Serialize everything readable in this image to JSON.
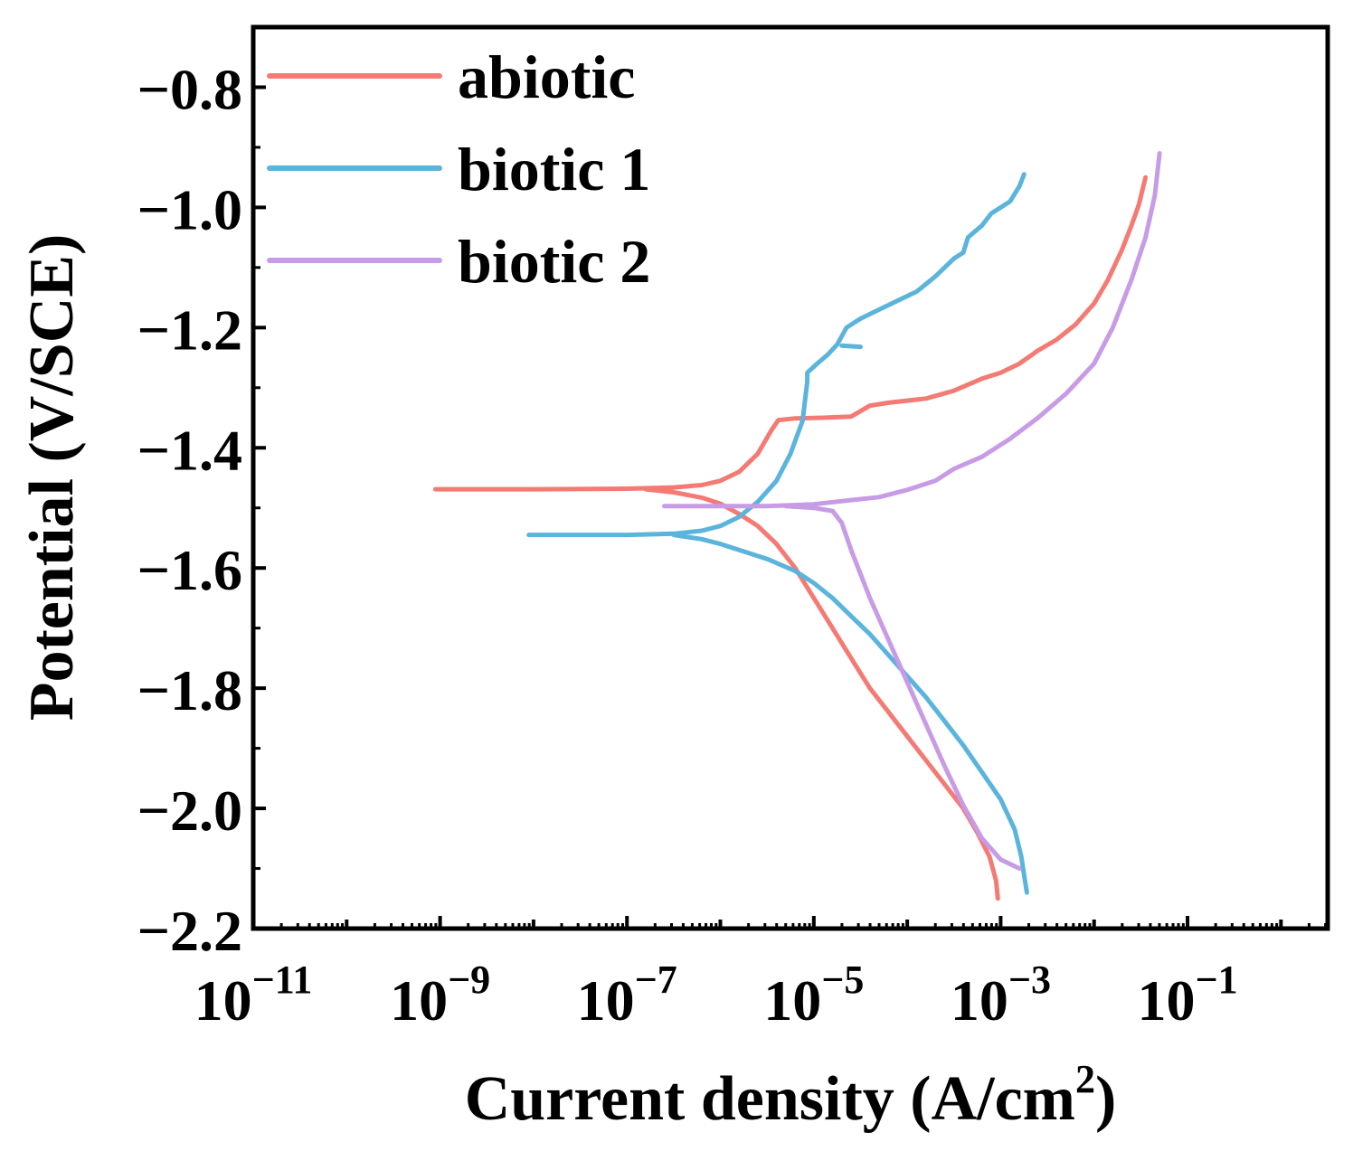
{
  "chart_data": {
    "type": "line",
    "xscale": "log",
    "xlabel": "Current density (A/cm",
    "xlabel_sup": "2",
    "xlabel_end": ")",
    "ylabel": "Potential (V/SCE)",
    "xlim_exp": [
      -11,
      0.5
    ],
    "ylim": [
      -2.2,
      -0.7
    ],
    "x_major_exponents": [
      -11,
      -9,
      -7,
      -5,
      -3,
      -1
    ],
    "x_tick_base": "10",
    "x_tick_exps": [
      "−11",
      "−9",
      "−7",
      "−5",
      "−3",
      "−1"
    ],
    "y_ticks": [
      -0.8,
      -1.0,
      -1.2,
      -1.4,
      -1.6,
      -1.8,
      -2.0,
      -2.2
    ],
    "y_tick_labels": [
      "−0.8",
      "−1.0",
      "−1.2",
      "−1.4",
      "−1.6",
      "−1.8",
      "−2.0",
      "−2.2"
    ],
    "legend_position": "top-left",
    "series": [
      {
        "name": "abiotic",
        "color": "#f47a74",
        "points": [
          [
            -9.05,
            -1.469
          ],
          [
            -8,
            -1.469
          ],
          [
            -7,
            -1.468
          ],
          [
            -6.5,
            -1.466
          ],
          [
            -6.2,
            -1.462
          ],
          [
            -6.0,
            -1.455
          ],
          [
            -5.8,
            -1.44
          ],
          [
            -5.6,
            -1.41
          ],
          [
            -5.45,
            -1.37
          ],
          [
            -5.38,
            -1.354
          ],
          [
            -5.2,
            -1.351
          ],
          [
            -4.9,
            -1.35
          ],
          [
            -4.6,
            -1.348
          ],
          [
            -4.4,
            -1.33
          ],
          [
            -4.2,
            -1.325
          ],
          [
            -3.8,
            -1.318
          ],
          [
            -3.5,
            -1.305
          ],
          [
            -3.2,
            -1.285
          ],
          [
            -3.0,
            -1.275
          ],
          [
            -2.8,
            -1.26
          ],
          [
            -2.6,
            -1.238
          ],
          [
            -2.4,
            -1.22
          ],
          [
            -2.2,
            -1.195
          ],
          [
            -2.0,
            -1.16
          ],
          [
            -1.85,
            -1.12
          ],
          [
            -1.7,
            -1.07
          ],
          [
            -1.6,
            -1.03
          ],
          [
            -1.52,
            -0.995
          ],
          [
            -1.45,
            -0.95
          ],
          null,
          [
            -6.8,
            -1.469
          ],
          [
            -6.5,
            -1.474
          ],
          [
            -6.2,
            -1.483
          ],
          [
            -6.0,
            -1.493
          ],
          [
            -5.8,
            -1.51
          ],
          [
            -5.6,
            -1.53
          ],
          [
            -5.4,
            -1.56
          ],
          [
            -5.2,
            -1.6
          ],
          [
            -5.0,
            -1.65
          ],
          [
            -4.8,
            -1.7
          ],
          [
            -4.6,
            -1.75
          ],
          [
            -4.4,
            -1.8
          ],
          [
            -4.2,
            -1.84
          ],
          [
            -4.0,
            -1.88
          ],
          [
            -3.8,
            -1.92
          ],
          [
            -3.6,
            -1.96
          ],
          [
            -3.4,
            -2.0
          ],
          [
            -3.25,
            -2.04
          ],
          [
            -3.12,
            -2.08
          ],
          [
            -3.05,
            -2.12
          ],
          [
            -3.03,
            -2.15
          ]
        ]
      },
      {
        "name": "biotic 1",
        "color": "#5ab4dc",
        "points": [
          [
            -8.05,
            -1.545
          ],
          [
            -7,
            -1.545
          ],
          [
            -6.5,
            -1.543
          ],
          [
            -6.2,
            -1.538
          ],
          [
            -6.0,
            -1.53
          ],
          [
            -5.8,
            -1.515
          ],
          [
            -5.6,
            -1.49
          ],
          [
            -5.4,
            -1.455
          ],
          [
            -5.25,
            -1.41
          ],
          [
            -5.12,
            -1.355
          ],
          [
            -5.07,
            -1.29
          ],
          [
            -5.07,
            -1.275
          ],
          [
            -4.95,
            -1.258
          ],
          [
            -4.85,
            -1.245
          ],
          [
            -4.75,
            -1.228
          ],
          [
            -4.65,
            -1.2
          ],
          [
            -4.5,
            -1.185
          ],
          [
            -4.3,
            -1.17
          ],
          [
            -4.1,
            -1.155
          ],
          [
            -3.9,
            -1.14
          ],
          [
            -3.7,
            -1.115
          ],
          [
            -3.5,
            -1.085
          ],
          [
            -3.4,
            -1.075
          ],
          [
            -3.35,
            -1.05
          ],
          [
            -3.2,
            -1.03
          ],
          [
            -3.1,
            -1.01
          ],
          [
            -2.9,
            -0.99
          ],
          [
            -2.8,
            -0.965
          ],
          [
            -2.75,
            -0.945
          ],
          null,
          [
            -4.5,
            -1.232
          ],
          [
            -4.7,
            -1.23
          ],
          null,
          [
            -6.5,
            -1.545
          ],
          [
            -6.2,
            -1.552
          ],
          [
            -6.0,
            -1.56
          ],
          [
            -5.8,
            -1.57
          ],
          [
            -5.5,
            -1.585
          ],
          [
            -5.2,
            -1.605
          ],
          [
            -5.0,
            -1.625
          ],
          [
            -4.8,
            -1.65
          ],
          [
            -4.6,
            -1.68
          ],
          [
            -4.4,
            -1.71
          ],
          [
            -4.2,
            -1.745
          ],
          [
            -4.0,
            -1.78
          ],
          [
            -3.8,
            -1.815
          ],
          [
            -3.6,
            -1.855
          ],
          [
            -3.4,
            -1.895
          ],
          [
            -3.2,
            -1.94
          ],
          [
            -3.0,
            -1.985
          ],
          [
            -2.85,
            -2.035
          ],
          [
            -2.78,
            -2.08
          ],
          [
            -2.76,
            -2.1
          ],
          [
            -2.72,
            -2.14
          ]
        ]
      },
      {
        "name": "biotic 2",
        "color": "#c79be6",
        "points": [
          [
            -6.6,
            -1.497
          ],
          [
            -5.5,
            -1.497
          ],
          [
            -5.0,
            -1.494
          ],
          [
            -4.6,
            -1.487
          ],
          [
            -4.3,
            -1.482
          ],
          [
            -4.0,
            -1.47
          ],
          [
            -3.7,
            -1.455
          ],
          [
            -3.5,
            -1.435
          ],
          [
            -3.2,
            -1.415
          ],
          [
            -2.9,
            -1.385
          ],
          [
            -2.6,
            -1.35
          ],
          [
            -2.3,
            -1.31
          ],
          [
            -2.0,
            -1.26
          ],
          [
            -1.8,
            -1.2
          ],
          [
            -1.6,
            -1.12
          ],
          [
            -1.45,
            -1.05
          ],
          [
            -1.35,
            -0.98
          ],
          [
            -1.3,
            -0.91
          ],
          null,
          [
            -5.3,
            -1.497
          ],
          [
            -5.0,
            -1.5
          ],
          [
            -4.8,
            -1.505
          ],
          [
            -4.7,
            -1.525
          ],
          [
            -4.6,
            -1.57
          ],
          [
            -4.4,
            -1.65
          ],
          [
            -4.2,
            -1.72
          ],
          [
            -4.0,
            -1.79
          ],
          [
            -3.8,
            -1.86
          ],
          [
            -3.6,
            -1.93
          ],
          [
            -3.4,
            -1.995
          ],
          [
            -3.2,
            -2.05
          ],
          [
            -3.0,
            -2.085
          ],
          [
            -2.8,
            -2.1
          ]
        ]
      }
    ]
  }
}
